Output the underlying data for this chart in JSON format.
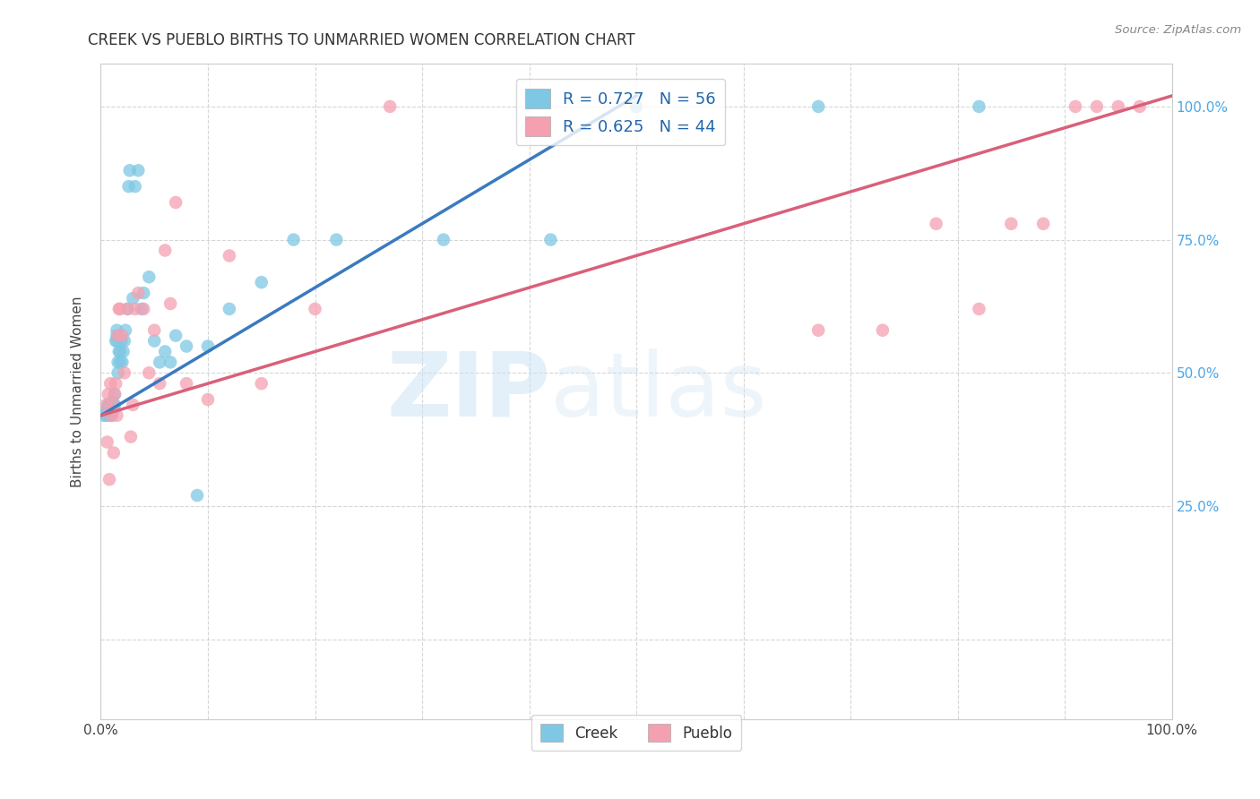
{
  "title": "CREEK VS PUEBLO BIRTHS TO UNMARRIED WOMEN CORRELATION CHART",
  "source": "Source: ZipAtlas.com",
  "ylabel": "Births to Unmarried Women",
  "xlim": [
    0.0,
    1.0
  ],
  "ylim": [
    -0.15,
    1.08
  ],
  "xticks": [
    0.0,
    0.1,
    0.2,
    0.3,
    0.4,
    0.5,
    0.6,
    0.7,
    0.8,
    0.9,
    1.0
  ],
  "xticklabels": [
    "0.0%",
    "",
    "",
    "",
    "",
    "",
    "",
    "",
    "",
    "",
    "100.0%"
  ],
  "yticks": [
    0.25,
    0.5,
    0.75,
    1.0
  ],
  "yticklabels_right": [
    "25.0%",
    "50.0%",
    "75.0%",
    "100.0%"
  ],
  "creek_color": "#7ec8e3",
  "pueblo_color": "#f4a0b0",
  "creek_line_color": "#3a7abf",
  "pueblo_line_color": "#d9607a",
  "creek_R": 0.727,
  "creek_N": 56,
  "pueblo_R": 0.625,
  "pueblo_N": 44,
  "watermark_zip": "ZIP",
  "watermark_atlas": "atlas",
  "legend_creek": "Creek",
  "legend_pueblo": "Pueblo",
  "creek_x": [
    0.003,
    0.005,
    0.005,
    0.006,
    0.007,
    0.008,
    0.008,
    0.009,
    0.009,
    0.01,
    0.01,
    0.01,
    0.012,
    0.012,
    0.013,
    0.013,
    0.014,
    0.015,
    0.015,
    0.015,
    0.016,
    0.016,
    0.017,
    0.018,
    0.018,
    0.019,
    0.02,
    0.021,
    0.022,
    0.023,
    0.025,
    0.026,
    0.027,
    0.03,
    0.032,
    0.035,
    0.038,
    0.04,
    0.045,
    0.05,
    0.055,
    0.06,
    0.065,
    0.07,
    0.08,
    0.09,
    0.1,
    0.12,
    0.15,
    0.18,
    0.22,
    0.32,
    0.42,
    0.5,
    0.67,
    0.82
  ],
  "creek_y": [
    0.42,
    0.42,
    0.43,
    0.435,
    0.44,
    0.42,
    0.44,
    0.435,
    0.44,
    0.42,
    0.44,
    0.445,
    0.43,
    0.44,
    0.44,
    0.46,
    0.56,
    0.56,
    0.57,
    0.58,
    0.5,
    0.52,
    0.54,
    0.52,
    0.54,
    0.56,
    0.52,
    0.54,
    0.56,
    0.58,
    0.62,
    0.85,
    0.88,
    0.64,
    0.85,
    0.88,
    0.62,
    0.65,
    0.68,
    0.56,
    0.52,
    0.54,
    0.52,
    0.57,
    0.55,
    0.27,
    0.55,
    0.62,
    0.67,
    0.75,
    0.75,
    0.75,
    0.75,
    1.0,
    1.0,
    1.0
  ],
  "pueblo_x": [
    0.005,
    0.006,
    0.007,
    0.008,
    0.009,
    0.01,
    0.011,
    0.012,
    0.013,
    0.014,
    0.015,
    0.016,
    0.017,
    0.018,
    0.02,
    0.022,
    0.025,
    0.028,
    0.03,
    0.032,
    0.035,
    0.04,
    0.045,
    0.05,
    0.055,
    0.06,
    0.065,
    0.07,
    0.08,
    0.1,
    0.12,
    0.15,
    0.2,
    0.27,
    0.67,
    0.73,
    0.78,
    0.82,
    0.85,
    0.88,
    0.91,
    0.93,
    0.95,
    0.97
  ],
  "pueblo_y": [
    0.44,
    0.37,
    0.46,
    0.3,
    0.48,
    0.42,
    0.44,
    0.35,
    0.46,
    0.48,
    0.42,
    0.57,
    0.62,
    0.62,
    0.57,
    0.5,
    0.62,
    0.38,
    0.44,
    0.62,
    0.65,
    0.62,
    0.5,
    0.58,
    0.48,
    0.73,
    0.63,
    0.82,
    0.48,
    0.45,
    0.72,
    0.48,
    0.62,
    1.0,
    0.58,
    0.58,
    0.78,
    0.62,
    0.78,
    0.78,
    1.0,
    1.0,
    1.0,
    1.0
  ],
  "creek_line_x": [
    0.0,
    0.5
  ],
  "creek_line_y": [
    0.42,
    1.02
  ],
  "pueblo_line_x": [
    0.0,
    1.0
  ],
  "pueblo_line_y": [
    0.42,
    1.02
  ]
}
